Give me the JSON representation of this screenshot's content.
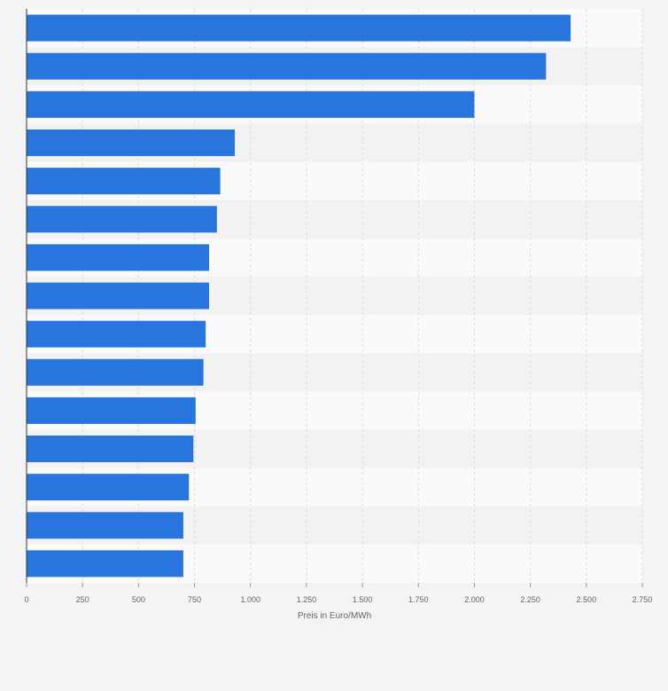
{
  "chart_data": {
    "type": "bar",
    "orientation": "horizontal",
    "title": "",
    "xlabel": "Preis in Euro/MWh",
    "ylabel": "",
    "categories": [
      "",
      "",
      "",
      "",
      "",
      "",
      "",
      "",
      "",
      "",
      "",
      "",
      "",
      "",
      ""
    ],
    "values": [
      2430,
      2320,
      2000,
      930,
      865,
      850,
      815,
      815,
      800,
      790,
      755,
      745,
      725,
      700,
      700
    ],
    "xlim": [
      0,
      2750
    ],
    "xticks": [
      0,
      250,
      500,
      750,
      1000,
      1250,
      1500,
      1750,
      2000,
      2250,
      2500,
      2750
    ],
    "xtick_labels": [
      "0",
      "250",
      "500",
      "750",
      "1.000",
      "1.250",
      "1.500",
      "1.750",
      "2.000",
      "2.250",
      "2.500",
      "2.750"
    ],
    "grid": true,
    "legend": "none",
    "colors": {
      "bar": "#2876dd",
      "background": "#f4f4f4",
      "band_light": "#fafafa",
      "band_dark": "#f2f2f2",
      "grid": "#dcdcdc",
      "axis": "#333333",
      "text": "#666666"
    }
  }
}
